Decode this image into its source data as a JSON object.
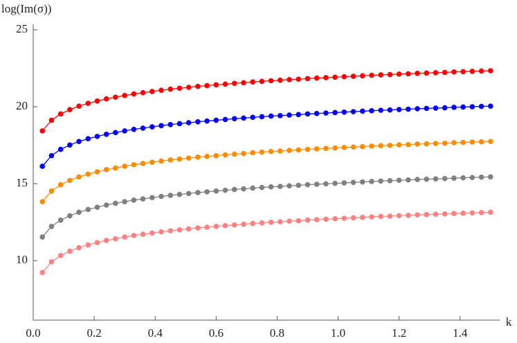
{
  "chart_data": {
    "type": "scatter-line",
    "xlabel": "k",
    "ylabel": "log(Im(σ))",
    "x": [
      0.03,
      0.06,
      0.09,
      0.12,
      0.15,
      0.18,
      0.21,
      0.24,
      0.27,
      0.3,
      0.33,
      0.36,
      0.39,
      0.42,
      0.45,
      0.48,
      0.51,
      0.54,
      0.57,
      0.6,
      0.63,
      0.66,
      0.69,
      0.72,
      0.75,
      0.78,
      0.81,
      0.84,
      0.87,
      0.9,
      0.93,
      0.96,
      0.99,
      1.02,
      1.05,
      1.08,
      1.11,
      1.14,
      1.17,
      1.2,
      1.23,
      1.26,
      1.29,
      1.32,
      1.35,
      1.38,
      1.41,
      1.44,
      1.47,
      1.5
    ],
    "series": [
      {
        "color": "#ff0000",
        "values": [
          18.43,
          19.12,
          19.53,
          19.81,
          20.04,
          20.22,
          20.37,
          20.51,
          20.62,
          20.73,
          20.83,
          20.91,
          20.99,
          21.07,
          21.14,
          21.2,
          21.26,
          21.32,
          21.37,
          21.42,
          21.47,
          21.52,
          21.56,
          21.61,
          21.65,
          21.69,
          21.72,
          21.76,
          21.79,
          21.83,
          21.86,
          21.89,
          21.92,
          21.95,
          21.98,
          22.01,
          22.04,
          22.07,
          22.09,
          22.12,
          22.14,
          22.17,
          22.19,
          22.21,
          22.23,
          22.26,
          22.28,
          22.3,
          22.32,
          22.34
        ]
      },
      {
        "color": "#0000ff",
        "values": [
          16.13,
          16.82,
          17.23,
          17.51,
          17.74,
          17.92,
          18.07,
          18.21,
          18.32,
          18.43,
          18.53,
          18.61,
          18.69,
          18.77,
          18.84,
          18.9,
          18.96,
          19.02,
          19.07,
          19.12,
          19.17,
          19.22,
          19.26,
          19.31,
          19.35,
          19.39,
          19.42,
          19.46,
          19.49,
          19.53,
          19.56,
          19.59,
          19.62,
          19.65,
          19.68,
          19.71,
          19.74,
          19.77,
          19.79,
          19.82,
          19.84,
          19.87,
          19.89,
          19.91,
          19.93,
          19.96,
          19.98,
          20.0,
          20.02,
          20.04
        ]
      },
      {
        "color": "#ff8c00",
        "values": [
          13.83,
          14.52,
          14.93,
          15.21,
          15.44,
          15.62,
          15.77,
          15.91,
          16.02,
          16.13,
          16.23,
          16.31,
          16.39,
          16.47,
          16.54,
          16.6,
          16.66,
          16.72,
          16.77,
          16.82,
          16.87,
          16.92,
          16.96,
          17.01,
          17.05,
          17.09,
          17.12,
          17.16,
          17.19,
          17.23,
          17.26,
          17.29,
          17.32,
          17.35,
          17.38,
          17.41,
          17.44,
          17.47,
          17.49,
          17.52,
          17.54,
          17.57,
          17.59,
          17.61,
          17.63,
          17.66,
          17.68,
          17.7,
          17.72,
          17.74
        ]
      },
      {
        "color": "#808080",
        "values": [
          11.53,
          12.22,
          12.63,
          12.91,
          13.14,
          13.32,
          13.47,
          13.61,
          13.72,
          13.83,
          13.93,
          14.01,
          14.09,
          14.17,
          14.24,
          14.3,
          14.36,
          14.42,
          14.47,
          14.52,
          14.57,
          14.62,
          14.66,
          14.71,
          14.75,
          14.79,
          14.82,
          14.86,
          14.89,
          14.93,
          14.96,
          14.99,
          15.02,
          15.05,
          15.08,
          15.11,
          15.14,
          15.17,
          15.19,
          15.22,
          15.24,
          15.27,
          15.29,
          15.31,
          15.33,
          15.36,
          15.38,
          15.4,
          15.42,
          15.44
        ]
      },
      {
        "color": "#ff8080",
        "values": [
          9.23,
          9.92,
          10.33,
          10.61,
          10.84,
          11.02,
          11.17,
          11.31,
          11.42,
          11.53,
          11.63,
          11.71,
          11.79,
          11.87,
          11.94,
          12.0,
          12.06,
          12.12,
          12.17,
          12.22,
          12.27,
          12.32,
          12.36,
          12.41,
          12.45,
          12.49,
          12.52,
          12.56,
          12.59,
          12.63,
          12.66,
          12.69,
          12.72,
          12.75,
          12.78,
          12.81,
          12.84,
          12.87,
          12.89,
          12.92,
          12.94,
          12.97,
          12.99,
          13.01,
          13.03,
          13.06,
          13.08,
          13.1,
          13.12,
          13.14
        ]
      }
    ],
    "xlim": [
      0,
      1.53
    ],
    "ylim": [
      6.13,
      25.36
    ],
    "xticks": [
      {
        "value": 0,
        "label": "0.0"
      },
      0.2,
      0.4,
      0.6,
      0.8,
      {
        "value": 1,
        "label": "1.0"
      },
      1.2,
      1.4
    ],
    "yticks": [
      10,
      15,
      20,
      25
    ]
  }
}
